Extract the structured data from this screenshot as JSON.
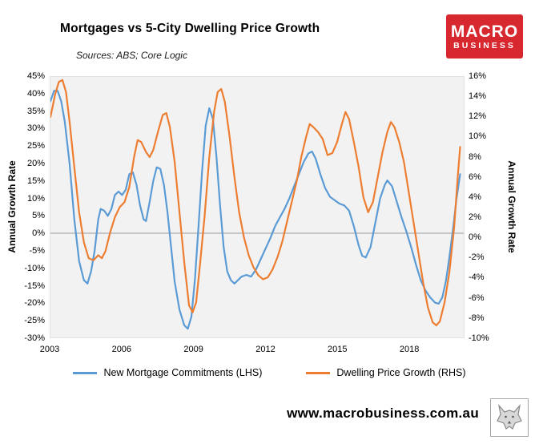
{
  "header": {
    "title": "Mortgages vs 5-City Dwelling Price Growth",
    "sources": "Sources: ABS; Core Logic"
  },
  "logo": {
    "line1": "MACRO",
    "line2": "BUSINESS",
    "bg": "#d7272f"
  },
  "footer": {
    "url": "www.macrobusiness.com.au"
  },
  "legend": {
    "items": [
      {
        "label": "New Mortgage Commitments (LHS)",
        "color": "#5B9BD5"
      },
      {
        "label": "Dwelling Price Growth (RHS)",
        "color": "#ED7D31"
      }
    ]
  },
  "chart_data": {
    "type": "line",
    "title": "Mortgages vs 5-City Dwelling Price Growth",
    "grid": false,
    "plot_background": "#f2f2f2",
    "zero_line_color": "#9a9a9a",
    "left_axis": {
      "label": "Annual Growth Rate",
      "min": -30,
      "max": 45,
      "step": 5,
      "tick_labels": [
        "45%",
        "40%",
        "35%",
        "30%",
        "25%",
        "20%",
        "15%",
        "10%",
        "5%",
        "0%",
        "-5%",
        "-10%",
        "-15%",
        "-20%",
        "-25%",
        "-30%"
      ]
    },
    "right_axis": {
      "label": "Annual Growth Rate",
      "min": -10,
      "max": 16,
      "step": 2,
      "tick_labels": [
        "16%",
        "14%",
        "12%",
        "10%",
        "8%",
        "6%",
        "4%",
        "2%",
        "0%",
        "-2%",
        "-4%",
        "-6%",
        "-8%",
        "-10%"
      ]
    },
    "x_axis": {
      "min": 2003,
      "max": 2020.3,
      "ticks": [
        2003,
        2006,
        2009,
        2012,
        2015,
        2018
      ],
      "tick_labels": [
        "2003",
        "2006",
        "2009",
        "2012",
        "2015",
        "2018"
      ]
    },
    "series": [
      {
        "name": "New Mortgage Commitments (LHS)",
        "axis": "left",
        "color": "#5B9BD5",
        "points": [
          [
            2003.0,
            38
          ],
          [
            2003.15,
            41
          ],
          [
            2003.3,
            41
          ],
          [
            2003.45,
            38
          ],
          [
            2003.6,
            32
          ],
          [
            2003.8,
            20
          ],
          [
            2004.0,
            4
          ],
          [
            2004.2,
            -8
          ],
          [
            2004.4,
            -13.5
          ],
          [
            2004.55,
            -14.5
          ],
          [
            2004.7,
            -11
          ],
          [
            2004.85,
            -5
          ],
          [
            2005.0,
            4
          ],
          [
            2005.1,
            7
          ],
          [
            2005.25,
            6.5
          ],
          [
            2005.4,
            5
          ],
          [
            2005.55,
            7
          ],
          [
            2005.7,
            11
          ],
          [
            2005.85,
            12
          ],
          [
            2006.0,
            11
          ],
          [
            2006.15,
            12.5
          ],
          [
            2006.3,
            17
          ],
          [
            2006.45,
            17.5
          ],
          [
            2006.6,
            14
          ],
          [
            2006.75,
            8
          ],
          [
            2006.9,
            4
          ],
          [
            2007.0,
            3.5
          ],
          [
            2007.15,
            9
          ],
          [
            2007.3,
            15
          ],
          [
            2007.45,
            19
          ],
          [
            2007.6,
            18.5
          ],
          [
            2007.75,
            14
          ],
          [
            2007.9,
            6
          ],
          [
            2008.05,
            -4
          ],
          [
            2008.2,
            -14
          ],
          [
            2008.4,
            -22
          ],
          [
            2008.6,
            -26.5
          ],
          [
            2008.75,
            -27.5
          ],
          [
            2008.9,
            -24
          ],
          [
            2009.05,
            -13
          ],
          [
            2009.2,
            2
          ],
          [
            2009.35,
            18
          ],
          [
            2009.5,
            31
          ],
          [
            2009.65,
            36
          ],
          [
            2009.8,
            33
          ],
          [
            2009.95,
            22
          ],
          [
            2010.1,
            8
          ],
          [
            2010.25,
            -4
          ],
          [
            2010.4,
            -11
          ],
          [
            2010.55,
            -13.5
          ],
          [
            2010.7,
            -14.5
          ],
          [
            2010.85,
            -13.5
          ],
          [
            2011.0,
            -12.5
          ],
          [
            2011.2,
            -12
          ],
          [
            2011.4,
            -12.5
          ],
          [
            2011.6,
            -10.5
          ],
          [
            2011.8,
            -7.5
          ],
          [
            2012.0,
            -4.5
          ],
          [
            2012.2,
            -1.5
          ],
          [
            2012.4,
            2
          ],
          [
            2012.6,
            4.5
          ],
          [
            2012.8,
            7
          ],
          [
            2013.0,
            10
          ],
          [
            2013.2,
            13.5
          ],
          [
            2013.4,
            17
          ],
          [
            2013.6,
            20.5
          ],
          [
            2013.8,
            23
          ],
          [
            2013.95,
            23.5
          ],
          [
            2014.1,
            21.5
          ],
          [
            2014.3,
            17
          ],
          [
            2014.5,
            13
          ],
          [
            2014.7,
            10.5
          ],
          [
            2014.9,
            9.5
          ],
          [
            2015.1,
            8.5
          ],
          [
            2015.3,
            8
          ],
          [
            2015.5,
            6.5
          ],
          [
            2015.7,
            2
          ],
          [
            2015.9,
            -3.5
          ],
          [
            2016.05,
            -6.5
          ],
          [
            2016.2,
            -7
          ],
          [
            2016.4,
            -4
          ],
          [
            2016.6,
            3
          ],
          [
            2016.8,
            10
          ],
          [
            2017.0,
            14
          ],
          [
            2017.1,
            15.2
          ],
          [
            2017.3,
            13.5
          ],
          [
            2017.5,
            9
          ],
          [
            2017.7,
            4.5
          ],
          [
            2017.9,
            0.5
          ],
          [
            2018.1,
            -4
          ],
          [
            2018.3,
            -9
          ],
          [
            2018.5,
            -13.5
          ],
          [
            2018.7,
            -16.5
          ],
          [
            2018.9,
            -18.5
          ],
          [
            2019.1,
            -20
          ],
          [
            2019.25,
            -20.3
          ],
          [
            2019.4,
            -18.5
          ],
          [
            2019.55,
            -14
          ],
          [
            2019.7,
            -7
          ],
          [
            2019.85,
            1
          ],
          [
            2020.0,
            10
          ],
          [
            2020.15,
            17
          ]
        ]
      },
      {
        "name": "Dwelling Price Growth (RHS)",
        "axis": "right",
        "color": "#ED7D31",
        "points": [
          [
            2003.0,
            12
          ],
          [
            2003.2,
            14.3
          ],
          [
            2003.35,
            15.5
          ],
          [
            2003.5,
            15.7
          ],
          [
            2003.65,
            14.5
          ],
          [
            2003.8,
            11.5
          ],
          [
            2004.0,
            7
          ],
          [
            2004.2,
            2.5
          ],
          [
            2004.4,
            -0.5
          ],
          [
            2004.6,
            -2.1
          ],
          [
            2004.8,
            -2.3
          ],
          [
            2005.0,
            -1.8
          ],
          [
            2005.15,
            -2.1
          ],
          [
            2005.3,
            -1.4
          ],
          [
            2005.5,
            0.5
          ],
          [
            2005.7,
            2
          ],
          [
            2005.9,
            3
          ],
          [
            2006.1,
            3.5
          ],
          [
            2006.3,
            5
          ],
          [
            2006.5,
            8
          ],
          [
            2006.65,
            9.7
          ],
          [
            2006.8,
            9.5
          ],
          [
            2007.0,
            8.5
          ],
          [
            2007.15,
            8
          ],
          [
            2007.3,
            8.7
          ],
          [
            2007.5,
            10.5
          ],
          [
            2007.7,
            12.2
          ],
          [
            2007.85,
            12.4
          ],
          [
            2008.0,
            11
          ],
          [
            2008.2,
            7.5
          ],
          [
            2008.4,
            2.5
          ],
          [
            2008.6,
            -2.5
          ],
          [
            2008.8,
            -6.8
          ],
          [
            2008.95,
            -7.5
          ],
          [
            2009.1,
            -6.5
          ],
          [
            2009.25,
            -3
          ],
          [
            2009.45,
            2
          ],
          [
            2009.65,
            8
          ],
          [
            2009.85,
            12.5
          ],
          [
            2010.0,
            14.5
          ],
          [
            2010.15,
            14.8
          ],
          [
            2010.3,
            13.5
          ],
          [
            2010.5,
            10
          ],
          [
            2010.7,
            6
          ],
          [
            2010.9,
            2.5
          ],
          [
            2011.1,
            0
          ],
          [
            2011.3,
            -1.8
          ],
          [
            2011.5,
            -3
          ],
          [
            2011.7,
            -3.8
          ],
          [
            2011.9,
            -4.2
          ],
          [
            2012.1,
            -4
          ],
          [
            2012.3,
            -3.2
          ],
          [
            2012.5,
            -2
          ],
          [
            2012.7,
            -0.5
          ],
          [
            2012.9,
            1.5
          ],
          [
            2013.1,
            3.5
          ],
          [
            2013.3,
            5.5
          ],
          [
            2013.5,
            8
          ],
          [
            2013.7,
            10
          ],
          [
            2013.85,
            11.3
          ],
          [
            2014.0,
            11
          ],
          [
            2014.2,
            10.5
          ],
          [
            2014.4,
            9.8
          ],
          [
            2014.6,
            8.2
          ],
          [
            2014.8,
            8.4
          ],
          [
            2015.0,
            9.5
          ],
          [
            2015.2,
            11.3
          ],
          [
            2015.35,
            12.5
          ],
          [
            2015.5,
            11.8
          ],
          [
            2015.7,
            9.5
          ],
          [
            2015.9,
            7
          ],
          [
            2016.1,
            4
          ],
          [
            2016.3,
            2.5
          ],
          [
            2016.5,
            3.5
          ],
          [
            2016.7,
            6
          ],
          [
            2016.9,
            8.5
          ],
          [
            2017.1,
            10.5
          ],
          [
            2017.25,
            11.5
          ],
          [
            2017.4,
            11
          ],
          [
            2017.6,
            9.5
          ],
          [
            2017.8,
            7.5
          ],
          [
            2018.0,
            4.5
          ],
          [
            2018.2,
            1.5
          ],
          [
            2018.4,
            -1.5
          ],
          [
            2018.6,
            -4.5
          ],
          [
            2018.8,
            -7
          ],
          [
            2019.0,
            -8.5
          ],
          [
            2019.15,
            -8.8
          ],
          [
            2019.3,
            -8.4
          ],
          [
            2019.5,
            -6.5
          ],
          [
            2019.7,
            -3.5
          ],
          [
            2019.9,
            1
          ],
          [
            2020.05,
            6
          ],
          [
            2020.15,
            9
          ]
        ]
      }
    ]
  }
}
